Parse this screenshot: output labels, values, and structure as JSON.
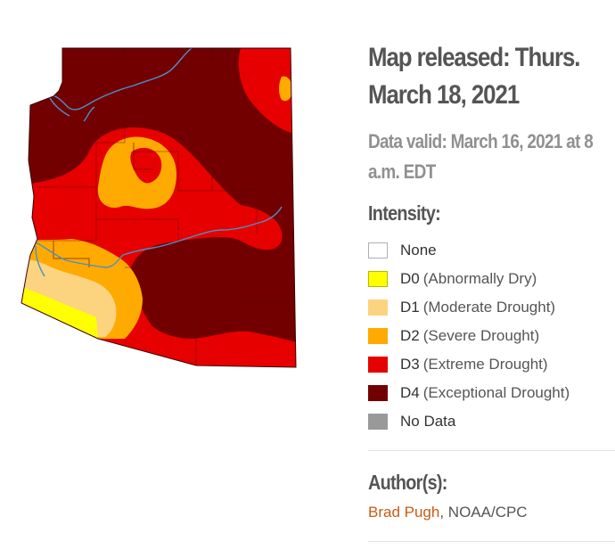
{
  "released": {
    "line1": "Map released: Thurs.",
    "line2": "March 18, 2021"
  },
  "valid": {
    "line1": "Data valid: March 16, 2021 at 8",
    "line2": "a.m. EDT"
  },
  "intensity": {
    "title": "Intensity:",
    "items": [
      {
        "code": "None",
        "desc": "",
        "color": "#ffffff"
      },
      {
        "code": "D0",
        "desc": "(Abnormally Dry)",
        "color": "#ffff00"
      },
      {
        "code": "D1",
        "desc": "(Moderate Drought)",
        "color": "#fcd37f"
      },
      {
        "code": "D2",
        "desc": "(Severe Drought)",
        "color": "#ffaa00"
      },
      {
        "code": "D3",
        "desc": "(Extreme Drought)",
        "color": "#e60000"
      },
      {
        "code": "D4",
        "desc": "(Exceptional Drought)",
        "color": "#730000"
      },
      {
        "code": "No Data",
        "desc": "",
        "color": "#999999"
      }
    ]
  },
  "author": {
    "title": "Author(s):",
    "name": "Brad Pugh",
    "affiliation": ", NOAA/CPC",
    "link_color": "#c75b12"
  },
  "map": {
    "region": "Arizona",
    "river_color": "#4a90c8"
  }
}
